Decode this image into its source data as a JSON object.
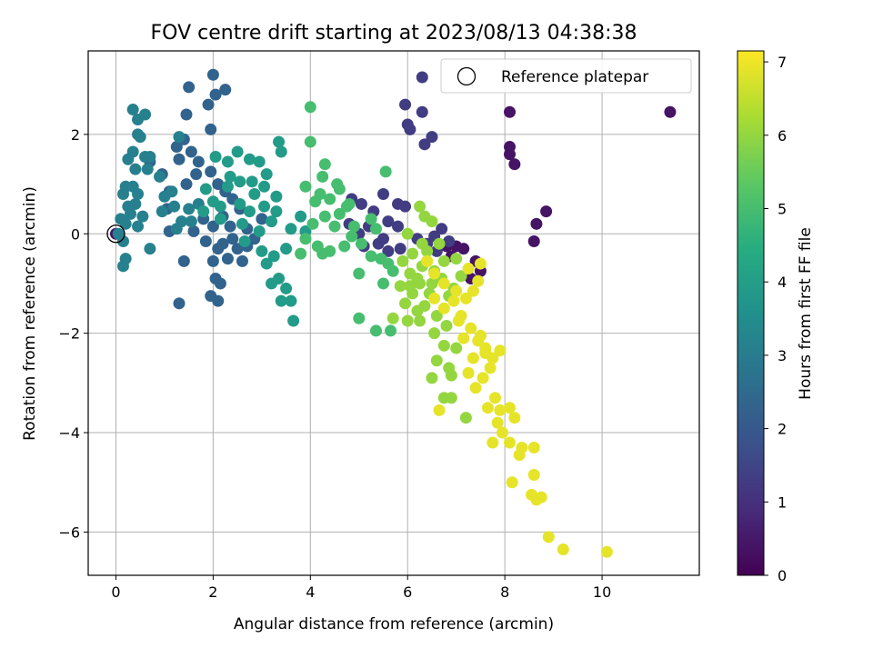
{
  "chart_data": {
    "type": "scatter",
    "title": "FOV centre drift starting at 2023/08/13 04:38:38",
    "xlabel": "Angular distance from reference (arcmin)",
    "ylabel": "Rotation from reference (arcmin)",
    "xlim": [
      -0.57,
      12.0
    ],
    "ylim": [
      -6.87,
      3.68
    ],
    "xticks": [
      0,
      2,
      4,
      6,
      8,
      10
    ],
    "yticks": [
      -6,
      -4,
      -2,
      0,
      2
    ],
    "xtick_labels": [
      "0",
      "2",
      "4",
      "6",
      "8",
      "10"
    ],
    "ytick_labels": [
      "−6",
      "−4",
      "−2",
      "0",
      "2"
    ],
    "grid": true,
    "legend": {
      "position": "top-right",
      "entries": [
        "Reference platepar"
      ]
    },
    "reference_point": {
      "x": 0,
      "y": 0
    },
    "colorbar": {
      "label": "Hours from first FF file",
      "colormap": "viridis",
      "range": [
        0,
        7.15
      ],
      "ticks": [
        0,
        1,
        2,
        3,
        4,
        5,
        6,
        7
      ],
      "tick_labels": [
        "0",
        "1",
        "2",
        "3",
        "4",
        "5",
        "6",
        "7"
      ]
    },
    "series": [
      {
        "color_value": 0.4,
        "points": [
          [
            0,
            0
          ],
          [
            11.4,
            2.45
          ],
          [
            8.1,
            2.45
          ],
          [
            8.1,
            1.75
          ],
          [
            8.1,
            1.6
          ],
          [
            8.2,
            1.4
          ],
          [
            8.85,
            0.45
          ],
          [
            8.65,
            0.2
          ],
          [
            8.6,
            -0.15
          ],
          [
            7.15,
            -0.3
          ],
          [
            7.4,
            -0.55
          ],
          [
            7.5,
            -0.75
          ],
          [
            7.3,
            -0.9
          ],
          [
            6.9,
            -0.45
          ],
          [
            6.8,
            -0.25
          ],
          [
            7.0,
            -0.25
          ]
        ]
      },
      {
        "color_value": 1.3,
        "points": [
          [
            6.3,
            3.15
          ],
          [
            6.3,
            2.45
          ],
          [
            5.95,
            2.6
          ],
          [
            6.0,
            2.2
          ],
          [
            6.05,
            2.1
          ],
          [
            6.35,
            1.8
          ],
          [
            6.5,
            1.95
          ],
          [
            5.5,
            0.8
          ],
          [
            5.8,
            0.6
          ],
          [
            5.95,
            0.55
          ],
          [
            4.85,
            0.7
          ],
          [
            5.05,
            0.6
          ],
          [
            5.3,
            0.45
          ],
          [
            5.6,
            0.25
          ],
          [
            5.8,
            0.15
          ],
          [
            5.2,
            0.15
          ],
          [
            5.0,
            0.0
          ],
          [
            5.5,
            -0.1
          ],
          [
            5.6,
            -0.35
          ],
          [
            5.85,
            -0.3
          ],
          [
            6.2,
            -0.1
          ],
          [
            6.4,
            -0.2
          ],
          [
            6.55,
            -0.05
          ],
          [
            6.7,
            0.1
          ],
          [
            6.85,
            -0.15
          ],
          [
            6.6,
            -0.35
          ],
          [
            5.4,
            -0.2
          ],
          [
            5.1,
            -0.25
          ],
          [
            4.8,
            0.2
          ]
        ]
      },
      {
        "color_value": 2.3,
        "points": [
          [
            2.0,
            3.2
          ],
          [
            2.05,
            2.8
          ],
          [
            2.25,
            2.9
          ],
          [
            1.5,
            2.95
          ],
          [
            1.9,
            2.6
          ],
          [
            1.95,
            2.1
          ],
          [
            1.45,
            2.4
          ],
          [
            1.4,
            1.9
          ],
          [
            1.25,
            1.75
          ],
          [
            1.3,
            1.5
          ],
          [
            1.55,
            1.65
          ],
          [
            1.7,
            1.45
          ],
          [
            1.65,
            1.2
          ],
          [
            1.45,
            1.0
          ],
          [
            1.95,
            1.25
          ],
          [
            2.1,
            1.0
          ],
          [
            2.25,
            0.85
          ],
          [
            2.4,
            0.7
          ],
          [
            2.55,
            0.5
          ],
          [
            2.2,
            0.35
          ],
          [
            2.0,
            0.15
          ],
          [
            1.8,
            0.3
          ],
          [
            1.6,
            0.05
          ],
          [
            1.85,
            -0.15
          ],
          [
            2.1,
            -0.3
          ],
          [
            2.3,
            -0.5
          ],
          [
            2.6,
            -0.55
          ],
          [
            2.4,
            -0.1
          ],
          [
            2.7,
            0.1
          ],
          [
            1.4,
            -0.55
          ],
          [
            1.3,
            -1.4
          ],
          [
            2.05,
            -0.9
          ],
          [
            2.15,
            -1.0
          ],
          [
            1.95,
            -1.25
          ],
          [
            2.1,
            -1.35
          ],
          [
            2.0,
            -0.55
          ],
          [
            2.2,
            -0.2
          ],
          [
            2.5,
            -0.3
          ],
          [
            2.7,
            -0.25
          ],
          [
            2.85,
            -0.1
          ],
          [
            3.0,
            0.3
          ],
          [
            2.35,
            0.15
          ],
          [
            1.1,
            0.05
          ],
          [
            1.05,
            0.5
          ],
          [
            1.1,
            0.85
          ],
          [
            0.95,
            1.2
          ],
          [
            0.7,
            1.45
          ]
        ]
      },
      {
        "color_value": 3.1,
        "points": [
          [
            0.35,
            2.5
          ],
          [
            0.45,
            2.3
          ],
          [
            0.45,
            2.0
          ],
          [
            0.6,
            2.4
          ],
          [
            0.5,
            1.95
          ],
          [
            0.35,
            1.65
          ],
          [
            0.25,
            1.5
          ],
          [
            0.4,
            1.3
          ],
          [
            0.6,
            1.55
          ],
          [
            0.65,
            1.3
          ],
          [
            0.7,
            1.55
          ],
          [
            0.2,
            0.95
          ],
          [
            0.35,
            0.95
          ],
          [
            0.45,
            0.8
          ],
          [
            0.15,
            0.8
          ],
          [
            0.4,
            0.6
          ],
          [
            0.3,
            0.4
          ],
          [
            0.55,
            0.35
          ],
          [
            0.45,
            0.15
          ],
          [
            0.2,
            0.2
          ],
          [
            0.1,
            0.3
          ],
          [
            0.05,
            0.0
          ],
          [
            0.15,
            -0.15
          ],
          [
            0.2,
            -0.5
          ],
          [
            0.15,
            -0.65
          ],
          [
            0.7,
            -0.3
          ],
          [
            0.95,
            0.45
          ],
          [
            1.15,
            0.85
          ],
          [
            1.0,
            0.75
          ],
          [
            1.3,
            1.95
          ],
          [
            1.2,
            0.55
          ],
          [
            1.35,
            0.25
          ],
          [
            1.5,
            0.5
          ],
          [
            1.7,
            0.6
          ],
          [
            1.55,
            0.25
          ],
          [
            1.25,
            0.1
          ],
          [
            0.9,
            1.15
          ],
          [
            0.25,
            0.55
          ]
        ]
      },
      {
        "color_value": 3.9,
        "points": [
          [
            2.5,
            1.65
          ],
          [
            2.3,
            1.45
          ],
          [
            2.75,
            1.5
          ],
          [
            2.95,
            1.45
          ],
          [
            3.1,
            1.2
          ],
          [
            3.35,
            1.85
          ],
          [
            3.4,
            1.65
          ],
          [
            2.55,
            1.05
          ],
          [
            2.85,
            0.8
          ],
          [
            3.05,
            0.95
          ],
          [
            3.3,
            0.75
          ],
          [
            2.55,
            0.6
          ],
          [
            2.75,
            0.45
          ],
          [
            3.05,
            0.55
          ],
          [
            3.3,
            0.45
          ],
          [
            3.2,
            0.25
          ],
          [
            2.95,
            0.05
          ],
          [
            2.65,
            -0.15
          ],
          [
            3.0,
            -0.35
          ],
          [
            3.25,
            -0.45
          ],
          [
            3.1,
            -0.6
          ],
          [
            3.5,
            -0.3
          ],
          [
            3.35,
            -0.9
          ],
          [
            3.5,
            -1.1
          ],
          [
            3.4,
            -1.35
          ],
          [
            3.6,
            -1.35
          ],
          [
            3.65,
            -1.75
          ],
          [
            3.2,
            -1.0
          ],
          [
            2.15,
            0.3
          ],
          [
            2.0,
            0.65
          ],
          [
            1.85,
            0.9
          ],
          [
            2.35,
            1.15
          ],
          [
            2.6,
            0.2
          ],
          [
            2.15,
            0.55
          ],
          [
            1.8,
            0.45
          ],
          [
            2.05,
            1.55
          ],
          [
            2.3,
            0.95
          ],
          [
            2.8,
            1.05
          ],
          [
            3.6,
            0.1
          ],
          [
            3.8,
            0.35
          ],
          [
            3.9,
            0.05
          ]
        ]
      },
      {
        "color_value": 5.0,
        "points": [
          [
            4.0,
            2.55
          ],
          [
            4.0,
            1.85
          ],
          [
            4.25,
            1.15
          ],
          [
            4.3,
            1.4
          ],
          [
            3.9,
            0.95
          ],
          [
            4.1,
            0.65
          ],
          [
            4.4,
            0.7
          ],
          [
            4.6,
            0.9
          ],
          [
            4.75,
            0.55
          ],
          [
            4.3,
            0.35
          ],
          [
            4.5,
            0.15
          ],
          [
            4.9,
            0.15
          ],
          [
            4.05,
            0.2
          ],
          [
            3.9,
            -0.1
          ],
          [
            4.15,
            -0.25
          ],
          [
            4.4,
            -0.35
          ],
          [
            4.7,
            -0.25
          ],
          [
            4.85,
            -0.05
          ],
          [
            5.05,
            -0.2
          ],
          [
            5.25,
            -0.45
          ],
          [
            5.45,
            -0.5
          ],
          [
            5.6,
            -0.6
          ],
          [
            5.7,
            -0.75
          ],
          [
            4.25,
            -0.4
          ],
          [
            3.8,
            -0.4
          ],
          [
            4.6,
            0.4
          ],
          [
            4.8,
            0.6
          ],
          [
            5.55,
            1.25
          ],
          [
            5.35,
            0.1
          ],
          [
            5.0,
            -0.8
          ],
          [
            5.0,
            -1.7
          ],
          [
            5.35,
            -1.95
          ],
          [
            5.65,
            -1.95
          ],
          [
            5.5,
            -1.0
          ],
          [
            5.25,
            0.3
          ],
          [
            4.2,
            0.8
          ],
          [
            4.55,
            1.0
          ]
        ]
      },
      {
        "color_value": 6.0,
        "points": [
          [
            6.25,
            0.55
          ],
          [
            6.35,
            0.35
          ],
          [
            6.5,
            0.25
          ],
          [
            6.0,
            0.0
          ],
          [
            6.3,
            -0.2
          ],
          [
            6.1,
            -0.4
          ],
          [
            5.9,
            -0.55
          ],
          [
            6.05,
            -0.8
          ],
          [
            5.85,
            -1.05
          ],
          [
            6.1,
            -1.2
          ],
          [
            5.95,
            -1.4
          ],
          [
            6.2,
            -1.55
          ],
          [
            6.0,
            -1.75
          ],
          [
            6.25,
            -1.75
          ],
          [
            6.35,
            -1.45
          ],
          [
            6.45,
            -1.2
          ],
          [
            6.5,
            -1.0
          ],
          [
            6.7,
            -0.9
          ],
          [
            6.55,
            -0.75
          ],
          [
            6.75,
            -0.55
          ],
          [
            6.4,
            -0.55
          ],
          [
            6.85,
            -1.25
          ],
          [
            6.6,
            -1.65
          ],
          [
            6.8,
            -1.85
          ],
          [
            6.55,
            -2.0
          ],
          [
            6.75,
            -2.25
          ],
          [
            6.6,
            -2.55
          ],
          [
            6.85,
            -2.7
          ],
          [
            6.5,
            -2.9
          ],
          [
            6.9,
            -2.85
          ],
          [
            6.75,
            -3.3
          ],
          [
            6.9,
            -3.3
          ],
          [
            7.2,
            -3.7
          ],
          [
            7.0,
            -2.3
          ],
          [
            6.95,
            -1.1
          ],
          [
            7.1,
            -0.85
          ],
          [
            7.0,
            -0.5
          ],
          [
            6.65,
            -0.2
          ],
          [
            6.4,
            -0.35
          ],
          [
            6.2,
            -0.9
          ],
          [
            6.3,
            -0.65
          ],
          [
            5.7,
            -1.7
          ],
          [
            6.05,
            -1.05
          ],
          [
            6.25,
            -1.0
          ]
        ]
      },
      {
        "color_value": 6.9,
        "points": [
          [
            6.4,
            -0.55
          ],
          [
            6.55,
            -0.8
          ],
          [
            6.75,
            -1.0
          ],
          [
            7.0,
            -1.15
          ],
          [
            7.25,
            -0.7
          ],
          [
            7.5,
            -0.6
          ],
          [
            7.45,
            -0.95
          ],
          [
            7.35,
            -1.15
          ],
          [
            7.2,
            -1.3
          ],
          [
            7.1,
            -1.65
          ],
          [
            7.3,
            -1.9
          ],
          [
            7.45,
            -2.15
          ],
          [
            7.6,
            -2.4
          ],
          [
            7.75,
            -2.5
          ],
          [
            7.9,
            -2.35
          ],
          [
            7.7,
            -2.7
          ],
          [
            7.55,
            -2.9
          ],
          [
            7.4,
            -3.1
          ],
          [
            7.8,
            -3.3
          ],
          [
            7.65,
            -3.5
          ],
          [
            7.9,
            -3.55
          ],
          [
            8.1,
            -3.5
          ],
          [
            7.85,
            -3.8
          ],
          [
            7.95,
            -4.0
          ],
          [
            8.1,
            -4.2
          ],
          [
            8.35,
            -4.3
          ],
          [
            8.6,
            -4.3
          ],
          [
            8.3,
            -4.45
          ],
          [
            8.15,
            -5.0
          ],
          [
            8.6,
            -4.85
          ],
          [
            8.55,
            -5.25
          ],
          [
            8.75,
            -5.3
          ],
          [
            8.65,
            -5.35
          ],
          [
            8.9,
            -6.1
          ],
          [
            9.2,
            -6.35
          ],
          [
            10.1,
            -6.4
          ],
          [
            8.2,
            -3.7
          ],
          [
            7.75,
            -4.2
          ],
          [
            6.65,
            -3.55
          ],
          [
            7.6,
            -2.3
          ],
          [
            7.35,
            -2.5
          ],
          [
            7.15,
            -2.1
          ],
          [
            7.05,
            -1.75
          ],
          [
            6.95,
            -1.35
          ],
          [
            6.75,
            -1.5
          ],
          [
            6.55,
            -1.3
          ],
          [
            7.25,
            -2.8
          ],
          [
            7.5,
            -2.05
          ]
        ]
      }
    ]
  }
}
